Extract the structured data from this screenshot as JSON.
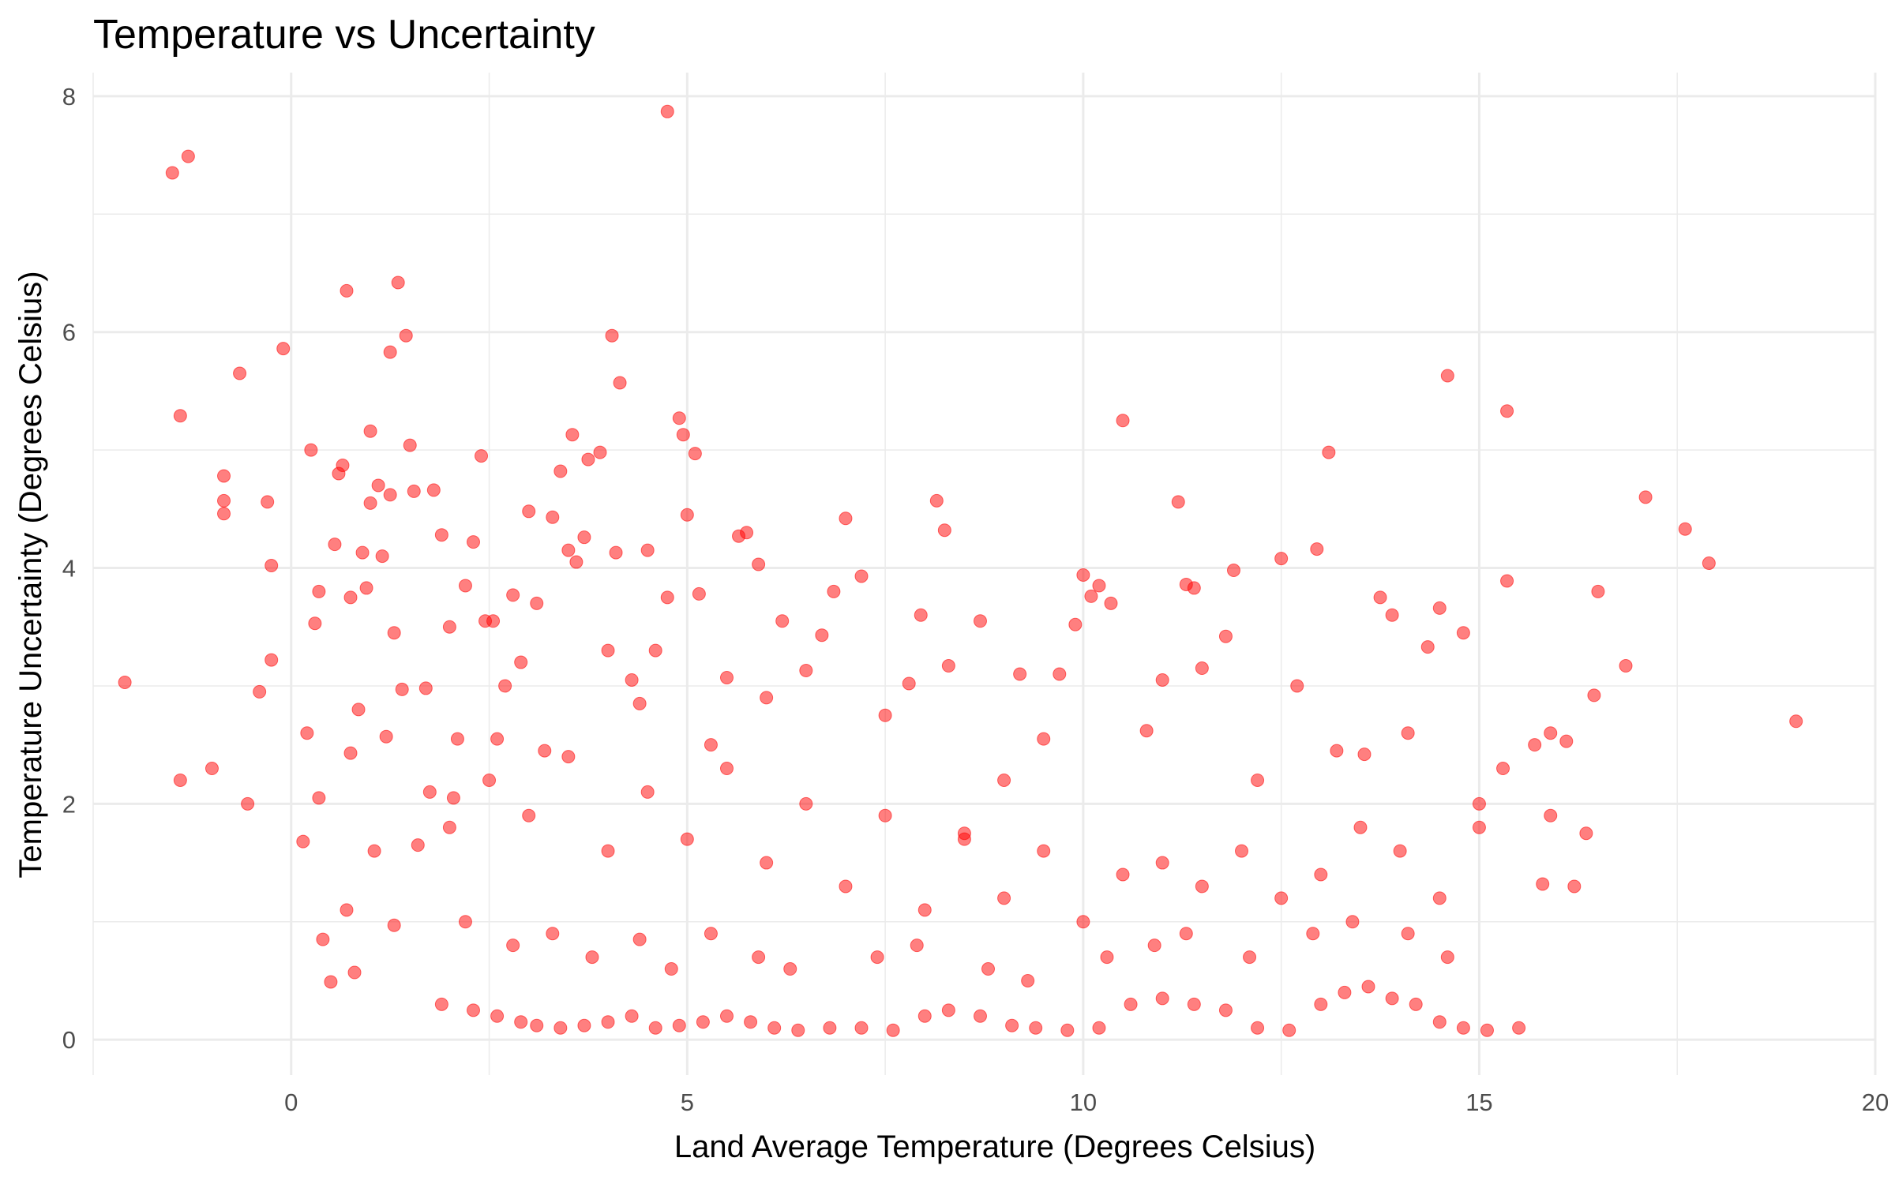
{
  "chart_data": {
    "type": "scatter",
    "title": "Temperature vs Uncertainty",
    "xlabel": "Land Average Temperature (Degrees Celsius)",
    "ylabel": "Temperature Uncertainty (Degrees Celsius)",
    "xlim": [
      -2.5,
      20
    ],
    "ylim": [
      -0.3,
      8.2
    ],
    "xticks": [
      0,
      5,
      10,
      15,
      20
    ],
    "xtick_labels": [
      "0",
      "5",
      "10",
      "15",
      "20"
    ],
    "yticks": [
      0,
      2,
      4,
      6,
      8
    ],
    "ytick_labels": [
      "0",
      "2",
      "4",
      "6",
      "8"
    ],
    "grid": true,
    "legend": "none",
    "colors": {
      "point": "#ff0000",
      "grid": "#ebebeb"
    },
    "points": [
      [
        -2.1,
        3.03
      ],
      [
        -1.5,
        7.35
      ],
      [
        -1.3,
        7.49
      ],
      [
        -1.4,
        5.29
      ],
      [
        -1.4,
        2.2
      ],
      [
        -1.0,
        2.3
      ],
      [
        -0.85,
        4.46
      ],
      [
        -0.85,
        4.57
      ],
      [
        -0.85,
        4.78
      ],
      [
        -0.65,
        5.65
      ],
      [
        -0.55,
        2.0
      ],
      [
        -0.4,
        2.95
      ],
      [
        -0.25,
        3.22
      ],
      [
        -0.25,
        4.02
      ],
      [
        -0.3,
        4.56
      ],
      [
        -0.1,
        5.86
      ],
      [
        0.15,
        1.68
      ],
      [
        0.2,
        2.6
      ],
      [
        0.25,
        5.0
      ],
      [
        0.3,
        3.53
      ],
      [
        0.35,
        3.8
      ],
      [
        0.35,
        2.05
      ],
      [
        0.4,
        0.85
      ],
      [
        0.5,
        0.49
      ],
      [
        0.55,
        4.2
      ],
      [
        0.6,
        4.8
      ],
      [
        0.65,
        4.87
      ],
      [
        0.7,
        6.35
      ],
      [
        0.7,
        1.1
      ],
      [
        0.75,
        3.75
      ],
      [
        0.75,
        2.43
      ],
      [
        0.8,
        0.57
      ],
      [
        0.85,
        2.8
      ],
      [
        0.9,
        4.13
      ],
      [
        0.95,
        3.83
      ],
      [
        1.0,
        4.55
      ],
      [
        1.0,
        5.16
      ],
      [
        1.05,
        1.6
      ],
      [
        1.1,
        4.7
      ],
      [
        1.15,
        4.1
      ],
      [
        1.2,
        2.57
      ],
      [
        1.25,
        5.83
      ],
      [
        1.25,
        4.62
      ],
      [
        1.3,
        3.45
      ],
      [
        1.3,
        0.97
      ],
      [
        1.35,
        6.42
      ],
      [
        1.4,
        2.97
      ],
      [
        1.45,
        5.97
      ],
      [
        1.5,
        5.04
      ],
      [
        1.55,
        4.65
      ],
      [
        1.6,
        1.65
      ],
      [
        1.7,
        2.98
      ],
      [
        1.75,
        2.1
      ],
      [
        1.8,
        4.66
      ],
      [
        1.9,
        4.28
      ],
      [
        2.0,
        3.5
      ],
      [
        2.05,
        2.05
      ],
      [
        2.1,
        2.55
      ],
      [
        2.2,
        3.85
      ],
      [
        2.3,
        4.22
      ],
      [
        2.4,
        4.95
      ],
      [
        2.45,
        3.55
      ],
      [
        2.55,
        3.55
      ],
      [
        2.6,
        2.55
      ],
      [
        2.7,
        3.0
      ],
      [
        2.8,
        3.77
      ],
      [
        2.9,
        3.2
      ],
      [
        3.0,
        4.48
      ],
      [
        3.1,
        3.7
      ],
      [
        3.2,
        2.45
      ],
      [
        3.3,
        4.43
      ],
      [
        3.4,
        4.82
      ],
      [
        3.5,
        4.15
      ],
      [
        3.55,
        5.13
      ],
      [
        3.6,
        4.05
      ],
      [
        3.7,
        4.26
      ],
      [
        3.75,
        4.92
      ],
      [
        3.9,
        4.98
      ],
      [
        4.0,
        3.3
      ],
      [
        4.05,
        5.97
      ],
      [
        4.1,
        4.13
      ],
      [
        4.15,
        5.57
      ],
      [
        4.3,
        3.05
      ],
      [
        4.4,
        2.85
      ],
      [
        4.5,
        4.15
      ],
      [
        4.6,
        3.3
      ],
      [
        4.75,
        7.87
      ],
      [
        4.75,
        3.75
      ],
      [
        4.9,
        5.27
      ],
      [
        4.95,
        5.13
      ],
      [
        5.0,
        4.45
      ],
      [
        5.1,
        4.97
      ],
      [
        5.15,
        3.78
      ],
      [
        5.3,
        2.5
      ],
      [
        5.5,
        3.07
      ],
      [
        5.65,
        4.27
      ],
      [
        5.75,
        4.3
      ],
      [
        5.9,
        4.03
      ],
      [
        6.0,
        2.9
      ],
      [
        6.2,
        3.55
      ],
      [
        6.5,
        3.13
      ],
      [
        6.7,
        3.43
      ],
      [
        6.85,
        3.8
      ],
      [
        7.0,
        4.42
      ],
      [
        7.2,
        3.93
      ],
      [
        7.5,
        2.75
      ],
      [
        7.8,
        3.02
      ],
      [
        7.95,
        3.6
      ],
      [
        8.15,
        4.57
      ],
      [
        8.25,
        4.32
      ],
      [
        8.3,
        3.17
      ],
      [
        8.5,
        1.75
      ],
      [
        8.7,
        3.55
      ],
      [
        9.0,
        2.2
      ],
      [
        9.2,
        3.1
      ],
      [
        9.5,
        2.55
      ],
      [
        9.7,
        3.1
      ],
      [
        9.9,
        3.52
      ],
      [
        10.0,
        3.94
      ],
      [
        10.1,
        3.76
      ],
      [
        10.2,
        3.85
      ],
      [
        10.35,
        3.7
      ],
      [
        10.5,
        5.25
      ],
      [
        10.8,
        2.62
      ],
      [
        11.0,
        3.05
      ],
      [
        11.2,
        4.56
      ],
      [
        11.3,
        3.86
      ],
      [
        11.4,
        3.83
      ],
      [
        11.5,
        3.15
      ],
      [
        11.8,
        3.42
      ],
      [
        11.9,
        3.98
      ],
      [
        12.2,
        2.2
      ],
      [
        12.5,
        4.08
      ],
      [
        12.7,
        3.0
      ],
      [
        12.95,
        4.16
      ],
      [
        13.1,
        4.98
      ],
      [
        13.2,
        2.45
      ],
      [
        13.55,
        2.42
      ],
      [
        13.75,
        3.75
      ],
      [
        13.9,
        3.6
      ],
      [
        14.1,
        2.6
      ],
      [
        14.35,
        3.33
      ],
      [
        14.5,
        3.66
      ],
      [
        14.6,
        5.63
      ],
      [
        14.8,
        3.45
      ],
      [
        15.0,
        2.0
      ],
      [
        15.3,
        2.3
      ],
      [
        15.35,
        5.33
      ],
      [
        15.35,
        3.89
      ],
      [
        15.7,
        2.5
      ],
      [
        15.9,
        2.6
      ],
      [
        16.1,
        2.53
      ],
      [
        16.35,
        1.75
      ],
      [
        16.5,
        3.8
      ],
      [
        16.45,
        2.92
      ],
      [
        16.85,
        3.17
      ],
      [
        17.1,
        4.6
      ],
      [
        17.6,
        4.33
      ],
      [
        17.9,
        4.04
      ],
      [
        19.0,
        2.7
      ],
      [
        15.8,
        1.32
      ],
      [
        15.9,
        1.9
      ],
      [
        16.2,
        1.3
      ],
      [
        15.5,
        0.1
      ],
      [
        1.9,
        0.3
      ],
      [
        2.3,
        0.25
      ],
      [
        2.6,
        0.2
      ],
      [
        2.9,
        0.15
      ],
      [
        3.1,
        0.12
      ],
      [
        3.4,
        0.1
      ],
      [
        3.7,
        0.12
      ],
      [
        4.0,
        0.15
      ],
      [
        4.3,
        0.2
      ],
      [
        4.6,
        0.1
      ],
      [
        4.9,
        0.12
      ],
      [
        5.2,
        0.15
      ],
      [
        5.5,
        0.2
      ],
      [
        5.8,
        0.15
      ],
      [
        6.1,
        0.1
      ],
      [
        6.4,
        0.08
      ],
      [
        6.8,
        0.1
      ],
      [
        7.2,
        0.1
      ],
      [
        7.6,
        0.08
      ],
      [
        8.0,
        0.2
      ],
      [
        8.3,
        0.25
      ],
      [
        8.7,
        0.2
      ],
      [
        9.1,
        0.12
      ],
      [
        9.4,
        0.1
      ],
      [
        9.8,
        0.08
      ],
      [
        10.2,
        0.1
      ],
      [
        10.6,
        0.3
      ],
      [
        11.0,
        0.35
      ],
      [
        11.4,
        0.3
      ],
      [
        11.8,
        0.25
      ],
      [
        12.2,
        0.1
      ],
      [
        12.6,
        0.08
      ],
      [
        13.0,
        0.3
      ],
      [
        13.3,
        0.4
      ],
      [
        13.6,
        0.45
      ],
      [
        13.9,
        0.35
      ],
      [
        14.2,
        0.3
      ],
      [
        14.5,
        0.15
      ],
      [
        14.8,
        0.1
      ],
      [
        15.1,
        0.08
      ],
      [
        2.0,
        1.8
      ],
      [
        2.5,
        2.2
      ],
      [
        3.0,
        1.9
      ],
      [
        3.5,
        2.4
      ],
      [
        4.0,
        1.6
      ],
      [
        4.5,
        2.1
      ],
      [
        5.0,
        1.7
      ],
      [
        5.5,
        2.3
      ],
      [
        6.0,
        1.5
      ],
      [
        6.5,
        2.0
      ],
      [
        7.0,
        1.3
      ],
      [
        7.5,
        1.9
      ],
      [
        8.0,
        1.1
      ],
      [
        8.5,
        1.7
      ],
      [
        9.0,
        1.2
      ],
      [
        9.5,
        1.6
      ],
      [
        10.0,
        1.0
      ],
      [
        10.5,
        1.4
      ],
      [
        11.0,
        1.5
      ],
      [
        11.5,
        1.3
      ],
      [
        12.0,
        1.6
      ],
      [
        12.5,
        1.2
      ],
      [
        13.0,
        1.4
      ],
      [
        13.5,
        1.8
      ],
      [
        14.0,
        1.6
      ],
      [
        14.5,
        1.2
      ],
      [
        15.0,
        1.8
      ],
      [
        2.2,
        1.0
      ],
      [
        2.8,
        0.8
      ],
      [
        3.3,
        0.9
      ],
      [
        3.8,
        0.7
      ],
      [
        4.4,
        0.85
      ],
      [
        4.8,
        0.6
      ],
      [
        5.3,
        0.9
      ],
      [
        5.9,
        0.7
      ],
      [
        6.3,
        0.6
      ],
      [
        7.4,
        0.7
      ],
      [
        7.9,
        0.8
      ],
      [
        8.8,
        0.6
      ],
      [
        9.3,
        0.5
      ],
      [
        10.3,
        0.7
      ],
      [
        10.9,
        0.8
      ],
      [
        11.3,
        0.9
      ],
      [
        12.1,
        0.7
      ],
      [
        12.9,
        0.9
      ],
      [
        13.4,
        1.0
      ],
      [
        14.1,
        0.9
      ],
      [
        14.6,
        0.7
      ]
    ]
  }
}
